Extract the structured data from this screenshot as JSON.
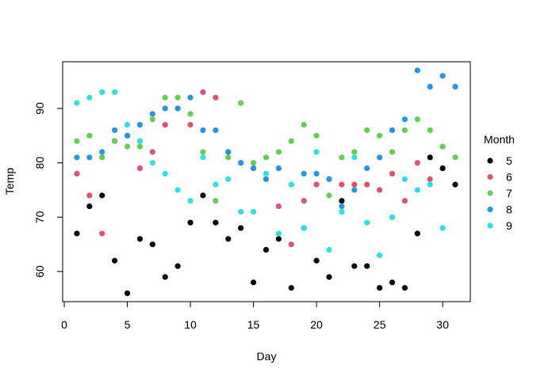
{
  "chart_data": {
    "type": "scatter",
    "title": "",
    "xlabel": "Day",
    "ylabel": "Temp",
    "xlim": [
      0,
      32
    ],
    "ylim": [
      55,
      98
    ],
    "x_ticks": [
      0,
      5,
      10,
      15,
      20,
      25,
      30
    ],
    "y_ticks": [
      60,
      70,
      80,
      90
    ],
    "grid": false,
    "legend": {
      "title": "Month",
      "placement": "right"
    },
    "series": [
      {
        "name": "5",
        "color": "#000000",
        "x": [
          1,
          2,
          3,
          4,
          5,
          6,
          7,
          8,
          9,
          10,
          11,
          12,
          13,
          14,
          15,
          16,
          17,
          18,
          19,
          20,
          21,
          22,
          23,
          24,
          25,
          26,
          27,
          28,
          29,
          30,
          31
        ],
        "y": [
          67,
          72,
          74,
          62,
          56,
          66,
          65,
          59,
          61,
          69,
          74,
          69,
          66,
          68,
          58,
          64,
          66,
          57,
          68,
          62,
          59,
          73,
          61,
          61,
          57,
          58,
          57,
          67,
          81,
          79,
          76
        ]
      },
      {
        "name": "6",
        "color": "#DF536B",
        "x": [
          1,
          2,
          3,
          4,
          5,
          6,
          7,
          8,
          9,
          10,
          11,
          12,
          13,
          14,
          15,
          16,
          17,
          18,
          19,
          20,
          21,
          22,
          23,
          24,
          25,
          26,
          27,
          28,
          29,
          30
        ],
        "y": [
          78,
          74,
          67,
          84,
          85,
          79,
          82,
          87,
          90,
          87,
          93,
          92,
          82,
          80,
          79,
          77,
          72,
          65,
          73,
          76,
          77,
          76,
          76,
          76,
          75,
          78,
          73,
          80,
          77,
          83
        ]
      },
      {
        "name": "7",
        "color": "#61D04F",
        "x": [
          1,
          2,
          3,
          4,
          5,
          6,
          7,
          8,
          9,
          10,
          11,
          12,
          13,
          14,
          15,
          16,
          17,
          18,
          19,
          20,
          21,
          22,
          23,
          24,
          25,
          26,
          27,
          28,
          29,
          30,
          31
        ],
        "y": [
          84,
          85,
          81,
          84,
          83,
          83,
          88,
          92,
          92,
          89,
          82,
          73,
          81,
          91,
          80,
          81,
          82,
          84,
          87,
          85,
          74,
          81,
          82,
          86,
          85,
          82,
          86,
          88,
          86,
          83,
          81
        ]
      },
      {
        "name": "8",
        "color": "#2297E6",
        "x": [
          1,
          2,
          3,
          4,
          5,
          6,
          7,
          8,
          9,
          10,
          11,
          12,
          13,
          14,
          15,
          16,
          17,
          18,
          19,
          20,
          21,
          22,
          23,
          24,
          25,
          26,
          27,
          28,
          29,
          30,
          31
        ],
        "y": [
          81,
          81,
          82,
          86,
          85,
          87,
          89,
          90,
          90,
          92,
          86,
          86,
          82,
          80,
          79,
          77,
          79,
          76,
          78,
          78,
          77,
          72,
          75,
          79,
          81,
          86,
          88,
          97,
          94,
          96,
          94
        ]
      },
      {
        "name": "9",
        "color": "#28E2E5",
        "x": [
          1,
          2,
          3,
          4,
          5,
          6,
          7,
          8,
          9,
          10,
          11,
          12,
          13,
          14,
          15,
          16,
          17,
          18,
          19,
          20,
          21,
          22,
          23,
          24,
          25,
          26,
          27,
          28,
          29,
          30
        ],
        "y": [
          91,
          92,
          93,
          93,
          87,
          84,
          80,
          78,
          75,
          73,
          81,
          76,
          77,
          71,
          71,
          78,
          67,
          76,
          68,
          82,
          64,
          71,
          81,
          69,
          63,
          70,
          77,
          75,
          76,
          68
        ]
      }
    ]
  }
}
